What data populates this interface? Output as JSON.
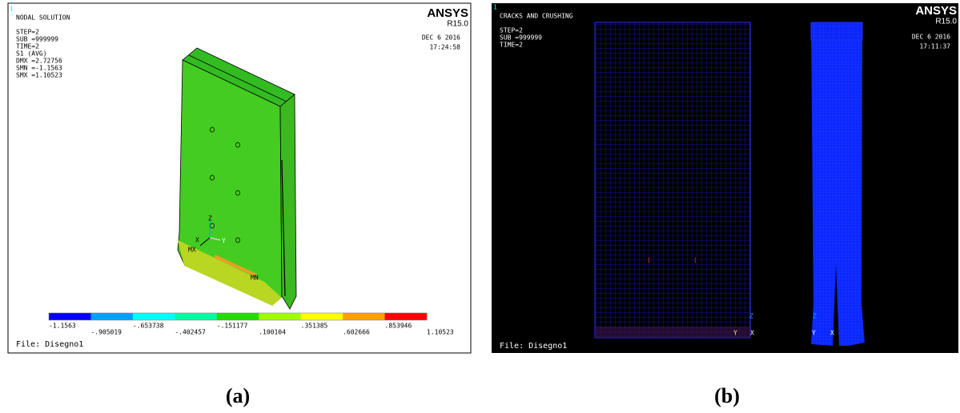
{
  "panels": [
    {
      "window": "1",
      "header": "NODAL SOLUTION",
      "info": [
        "STEP=2",
        "SUB =999999",
        "TIME=2",
        "S1       (AVG)",
        "DMX =2.72756",
        "SMN =-1.1563",
        "SMX =1.10523"
      ],
      "brand": "ANSYS",
      "version": "R15.0",
      "date": "DEC  6 2016",
      "time": "17:24:58",
      "axes": [
        "X",
        "Y",
        "Z"
      ],
      "markers": [
        "MX",
        "MN"
      ],
      "legend": [
        "-1.1563",
        "-.905019",
        "-.653738",
        "-.402457",
        "-.151177",
        ".100104",
        ".351385",
        ".602666",
        ".853946",
        "1.10523"
      ],
      "file": "File: Disegno1"
    },
    {
      "window": "1",
      "header": "CRACKS AND CRUSHING",
      "info": [
        "STEP=2",
        "SUB =999999",
        "TIME=2"
      ],
      "brand": "ANSYS",
      "version": "R15.0",
      "date": "DEC  6 2016",
      "time": "17:11:37",
      "axes": [
        "X",
        "Y",
        "Z"
      ],
      "file": "File: Disegno1"
    }
  ],
  "captions": [
    "(a)",
    "(b)"
  ]
}
